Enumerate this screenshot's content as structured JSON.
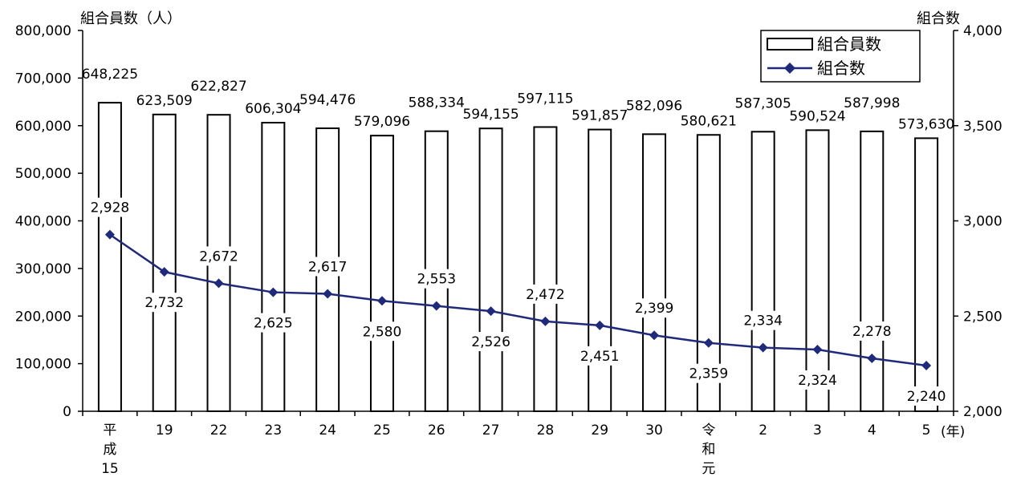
{
  "chart_data": {
    "type": "bar+line",
    "categories": [
      "平成\n15",
      "19",
      "22",
      "23",
      "24",
      "25",
      "26",
      "27",
      "28",
      "29",
      "30",
      "令和\n元",
      "2",
      "3",
      "4",
      "5"
    ],
    "x_unit": "(年)",
    "series": [
      {
        "name": "組合員数",
        "type": "bar",
        "axis": "left",
        "values": [
          648225,
          623509,
          622827,
          606304,
          594476,
          579096,
          588334,
          594155,
          597115,
          591857,
          582096,
          580621,
          587305,
          590524,
          587998,
          573630
        ],
        "labels": [
          "648,225",
          "623,509",
          "622,827",
          "606,304",
          "594,476",
          "579,096",
          "588,334",
          "594,155",
          "597,115",
          "591,857",
          "582,096",
          "580,621",
          "587,305",
          "590,524",
          "587,998",
          "573,630"
        ]
      },
      {
        "name": "組合数",
        "type": "line",
        "axis": "right",
        "color": "#1F2A7A",
        "values": [
          2928,
          2732,
          2672,
          2625,
          2617,
          2580,
          2553,
          2526,
          2472,
          2451,
          2399,
          2359,
          2334,
          2324,
          2278,
          2240
        ],
        "labels": [
          "2,928",
          "2,732",
          "2,672",
          "2,625",
          "2,617",
          "2,580",
          "2,553",
          "2,526",
          "2,472",
          "2,451",
          "2,399",
          "2,359",
          "2,334",
          "2,324",
          "2,278",
          "2,240"
        ],
        "label_position": [
          "above",
          "below",
          "above",
          "below",
          "above",
          "below",
          "above",
          "below",
          "above",
          "below",
          "above",
          "below",
          "above",
          "below",
          "above",
          "below"
        ]
      }
    ],
    "left_axis": {
      "title": "組合員数（人）",
      "min": 0,
      "max": 800000,
      "step": 100000,
      "tick_labels": [
        "0",
        "100,000",
        "200,000",
        "300,000",
        "400,000",
        "500,000",
        "600,000",
        "700,000",
        "800,000"
      ]
    },
    "right_axis": {
      "title": "組合数",
      "min": 2000,
      "max": 4000,
      "step": 500,
      "tick_labels": [
        "2,000",
        "2,500",
        "3,000",
        "3,500",
        "4,000"
      ]
    },
    "grid": false,
    "legend": {
      "placement": "top-right",
      "items": [
        {
          "label": "組合員数",
          "icon": "open-bar-swatch"
        },
        {
          "label": "組合数",
          "icon": "line-diamond-marker"
        }
      ]
    }
  }
}
